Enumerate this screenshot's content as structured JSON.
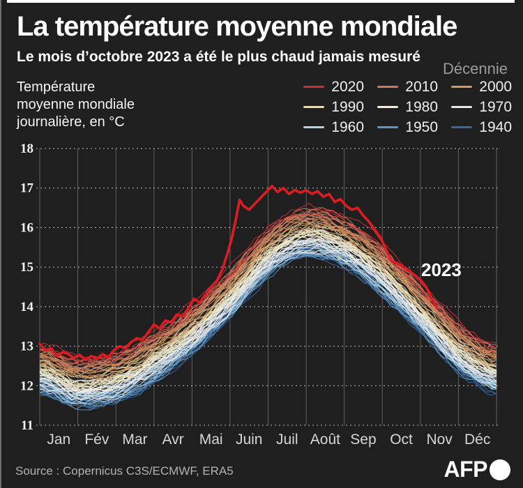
{
  "header": {
    "title": "La température moyenne mondiale",
    "subtitle": "Le mois d’octobre 2023 a été le plus chaud jamais mesuré"
  },
  "legend": {
    "title": "Décennie",
    "items": [
      {
        "label": "2020",
        "color": "#c92f35"
      },
      {
        "label": "2010",
        "color": "#c97a5d"
      },
      {
        "label": "2000",
        "color": "#d29a62"
      },
      {
        "label": "1990",
        "color": "#e7dcb4"
      },
      {
        "label": "1980",
        "color": "#f2efe4"
      },
      {
        "label": "1970",
        "color": "#e6e7e7"
      },
      {
        "label": "1960",
        "color": "#b7d2e3"
      },
      {
        "label": "1950",
        "color": "#5e95c2"
      },
      {
        "label": "1940",
        "color": "#38699f"
      }
    ]
  },
  "chart_data": {
    "type": "line",
    "ylabel_note": "Température\nmoyenne mondiale\njournalière, en °C",
    "x_months": [
      "Jan",
      "Fév",
      "Mar",
      "Avr",
      "Mai",
      "Juin",
      "Juil",
      "Août",
      "Sep",
      "Oct",
      "Nov",
      "Déc"
    ],
    "ylim": [
      11,
      18
    ],
    "yticks": [
      11,
      12,
      13,
      14,
      15,
      16,
      17,
      18
    ],
    "grid": "on",
    "seasonal_base_monthly": [
      12.45,
      12.1,
      12.25,
      12.75,
      13.45,
      14.35,
      15.4,
      15.9,
      15.65,
      14.95,
      14.0,
      13.0,
      12.45
    ],
    "decades": [
      {
        "name": "1940",
        "color": "#38699f",
        "offset": -0.48,
        "years": 10
      },
      {
        "name": "1950",
        "color": "#5e95c2",
        "offset": -0.44,
        "years": 10
      },
      {
        "name": "1960",
        "color": "#b7d2e3",
        "offset": -0.38,
        "years": 10
      },
      {
        "name": "1970",
        "color": "#e6e7e7",
        "offset": -0.28,
        "years": 10
      },
      {
        "name": "1980",
        "color": "#f2efe4",
        "offset": -0.1,
        "years": 10
      },
      {
        "name": "1990",
        "color": "#e7dcb4",
        "offset": 0.06,
        "years": 10
      },
      {
        "name": "2000",
        "color": "#d29a62",
        "offset": 0.24,
        "years": 10
      },
      {
        "name": "2010",
        "color": "#c97a5d",
        "offset": 0.42,
        "years": 10
      },
      {
        "name": "2020",
        "color": "#c92f35",
        "offset": 0.55,
        "years": 3
      }
    ],
    "year_spread": 0.16,
    "daily_noise": 0.12,
    "highlight": {
      "label": "2023",
      "color": "#dd1c22",
      "width": 3.6,
      "points_month_temp": [
        [
          0.0,
          13.05
        ],
        [
          0.15,
          12.9
        ],
        [
          0.3,
          12.95
        ],
        [
          0.45,
          12.75
        ],
        [
          0.6,
          12.85
        ],
        [
          0.75,
          12.8
        ],
        [
          0.9,
          12.7
        ],
        [
          1.05,
          12.78
        ],
        [
          1.2,
          12.65
        ],
        [
          1.35,
          12.75
        ],
        [
          1.5,
          12.68
        ],
        [
          1.65,
          12.8
        ],
        [
          1.8,
          12.72
        ],
        [
          1.95,
          12.9
        ],
        [
          2.1,
          13.0
        ],
        [
          2.25,
          12.95
        ],
        [
          2.4,
          13.1
        ],
        [
          2.55,
          13.2
        ],
        [
          2.7,
          13.15
        ],
        [
          2.85,
          13.35
        ],
        [
          3.0,
          13.55
        ],
        [
          3.15,
          13.45
        ],
        [
          3.3,
          13.65
        ],
        [
          3.45,
          13.6
        ],
        [
          3.6,
          13.8
        ],
        [
          3.75,
          13.75
        ],
        [
          3.9,
          13.95
        ],
        [
          4.05,
          14.2
        ],
        [
          4.2,
          14.1
        ],
        [
          4.35,
          14.3
        ],
        [
          4.5,
          14.5
        ],
        [
          4.65,
          14.65
        ],
        [
          4.8,
          14.95
        ],
        [
          4.95,
          15.4
        ],
        [
          5.05,
          15.75
        ],
        [
          5.15,
          16.2
        ],
        [
          5.25,
          16.7
        ],
        [
          5.35,
          16.55
        ],
        [
          5.5,
          16.45
        ],
        [
          5.65,
          16.6
        ],
        [
          5.8,
          16.75
        ],
        [
          5.95,
          16.9
        ],
        [
          6.1,
          17.05
        ],
        [
          6.25,
          16.9
        ],
        [
          6.4,
          17.0
        ],
        [
          6.55,
          16.85
        ],
        [
          6.7,
          16.95
        ],
        [
          6.85,
          16.88
        ],
        [
          7.0,
          16.95
        ],
        [
          7.15,
          16.85
        ],
        [
          7.3,
          16.92
        ],
        [
          7.45,
          16.78
        ],
        [
          7.6,
          16.85
        ],
        [
          7.75,
          16.65
        ],
        [
          7.9,
          16.72
        ],
        [
          8.05,
          16.55
        ],
        [
          8.2,
          16.45
        ],
        [
          8.35,
          16.5
        ],
        [
          8.5,
          16.3
        ],
        [
          8.65,
          16.15
        ],
        [
          8.8,
          15.95
        ],
        [
          8.95,
          15.75
        ],
        [
          9.1,
          15.45
        ],
        [
          9.25,
          15.15
        ],
        [
          9.4,
          15.1
        ],
        [
          9.55,
          15.0
        ],
        [
          9.7,
          14.9
        ],
        [
          9.85,
          14.8
        ],
        [
          10.0,
          14.68
        ],
        [
          10.15,
          14.5
        ],
        [
          10.3,
          14.2
        ],
        [
          10.45,
          13.95
        ]
      ]
    }
  },
  "footer": {
    "source": "Source : Copernicus C3S/ECMWF, ERA5",
    "logo": "AFP"
  }
}
